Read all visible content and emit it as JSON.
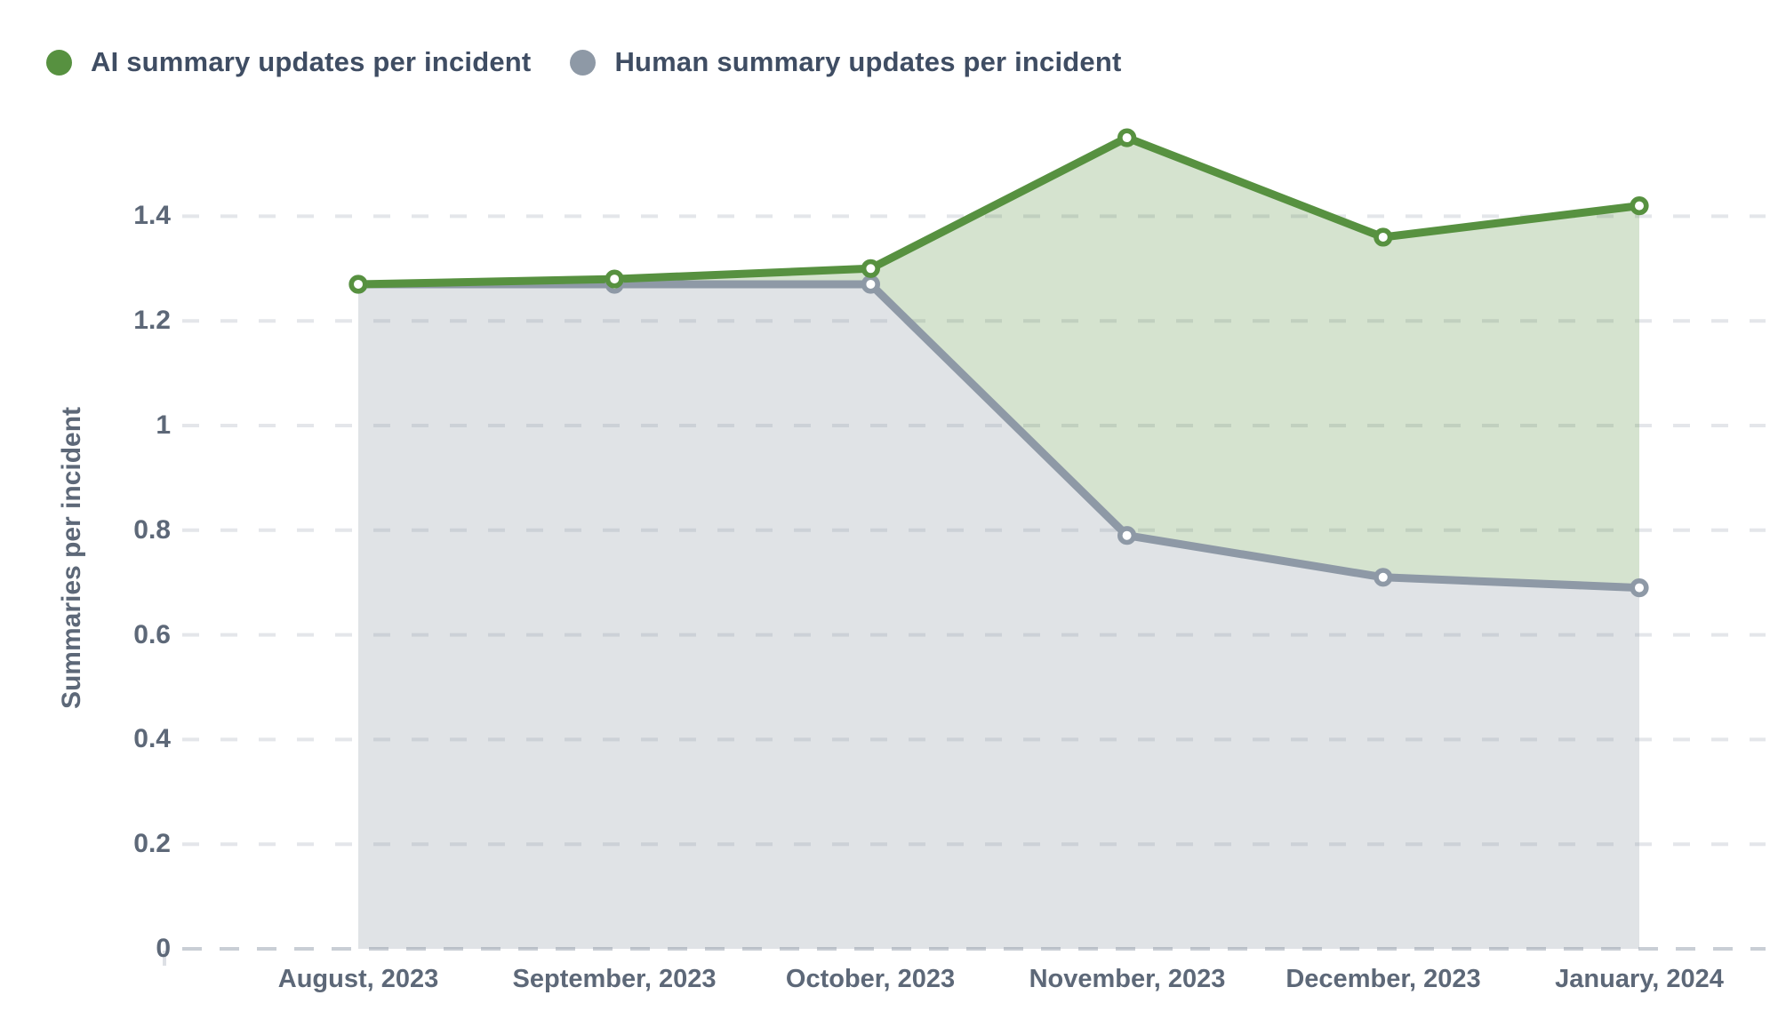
{
  "colors": {
    "background": "#ffffff",
    "legend_text": "#3f4d63",
    "axis_text": "#5d6878",
    "gridline": "#e4e6ea",
    "zero_gridline": "#c9ced5",
    "axis_tick": "#dde0e5",
    "ai_green": "#579140",
    "human_gray": "#8e99a6"
  },
  "chart_data": {
    "type": "area",
    "title": "",
    "categories": [
      "August, 2023",
      "September, 2023",
      "October, 2023",
      "November, 2023",
      "December, 2023",
      "January, 2024"
    ],
    "series": [
      {
        "name": "AI summary updates per incident",
        "color": "#579140",
        "fill": "rgba(87,145,64,0.25)",
        "fill_mode": "band-to-other-series",
        "values": [
          1.27,
          1.28,
          1.3,
          1.55,
          1.36,
          1.42
        ]
      },
      {
        "name": "Human summary updates per incident",
        "color": "#8e99a6",
        "fill": "rgba(142,153,166,0.28)",
        "fill_mode": "to-zero",
        "values": [
          1.27,
          1.27,
          1.27,
          0.79,
          0.71,
          0.69
        ]
      }
    ],
    "xlabel": "",
    "ylabel": "Summaries per incident",
    "ylim": [
      0,
      1.55
    ],
    "yticks": [
      0,
      0.2,
      0.4,
      0.6,
      0.8,
      1,
      1.2,
      1.4
    ],
    "ytick_labels": [
      "0",
      "0.2",
      "0.4",
      "0.6",
      "0.8",
      "1",
      "1.2",
      "1.4"
    ],
    "grid": "dashed-horizontal",
    "legend_position": "top-left",
    "marker": "open-circle"
  }
}
